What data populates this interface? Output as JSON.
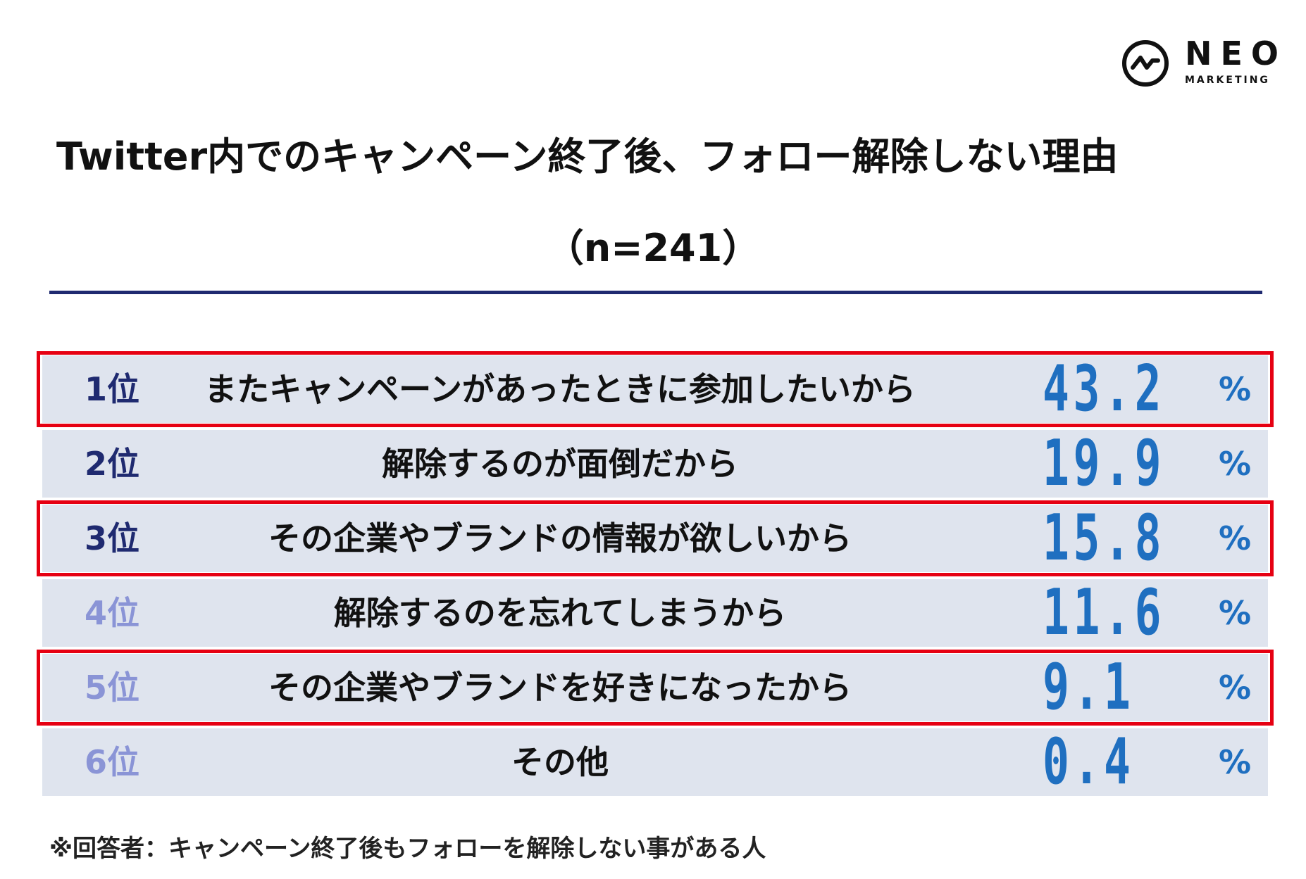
{
  "logo": {
    "name": "NEO",
    "sub": "MARKETING"
  },
  "title": "Twitter内でのキャンペーン終了後、フォロー解除しない理由",
  "subtitle": "（n=241）",
  "note": "※回答者：キャンペーン終了後もフォローを解除しない事がある人",
  "colors": {
    "accent": "#1f6fc0",
    "rule": "#1f2a70",
    "highlight_border": "#e60012",
    "row_bg": "#dfe4ee",
    "rank_colors": [
      "#1f2a70",
      "#1f2a70",
      "#1f2a70",
      "#8a94d6",
      "#8a94d6",
      "#8a94d6"
    ]
  },
  "chart_data": {
    "type": "table",
    "title": "Twitter内でのキャンペーン終了後、フォロー解除しない理由",
    "subtitle": "（n=241）",
    "unit": "%",
    "rows": [
      {
        "rank": "1位",
        "label": "またキャンペーンがあったときに参加したいから",
        "value": 43.2,
        "display": "43.2",
        "highlighted": true
      },
      {
        "rank": "2位",
        "label": "解除するのが面倒だから",
        "value": 19.9,
        "display": "19.9",
        "highlighted": false
      },
      {
        "rank": "3位",
        "label": "その企業やブランドの情報が欲しいから",
        "value": 15.8,
        "display": "15.8",
        "highlighted": true
      },
      {
        "rank": "4位",
        "label": "解除するのを忘れてしまうから",
        "value": 11.6,
        "display": "11.6",
        "highlighted": false
      },
      {
        "rank": "5位",
        "label": "その企業やブランドを好きになったから",
        "value": 9.1,
        "display": "9.1",
        "highlighted": true
      },
      {
        "rank": "6位",
        "label": "その他",
        "value": 0.4,
        "display": "0.4",
        "highlighted": false
      }
    ]
  }
}
